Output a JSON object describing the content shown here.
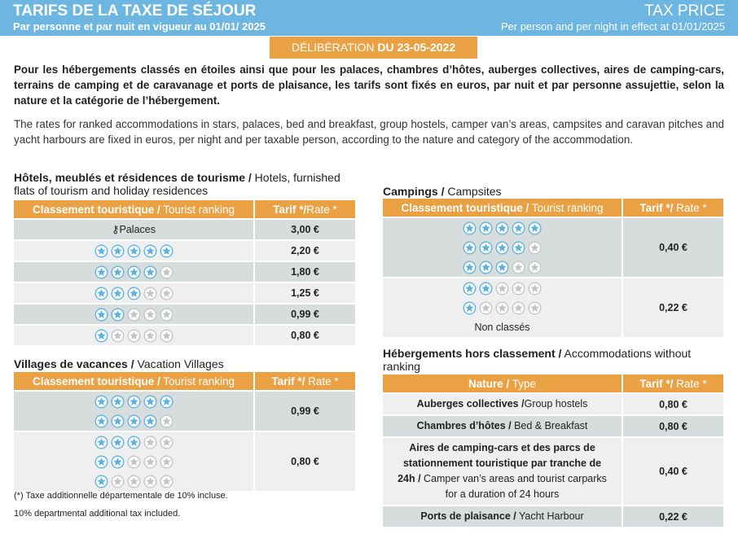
{
  "banner": {
    "title_fr": "TARIFS DE LA TAXE DE SÉJOUR",
    "subtitle_fr": "Par personne et par nuit en vigueur au 01/01/ 2025",
    "title_en": "TAX PRICE",
    "subtitle_en": "Per person and per night in effect at 01/01/2025"
  },
  "deliberation": {
    "label": "DÉLIBÉRATION",
    "date": "DU 23-05-2022"
  },
  "intro_fr": "Pour les hébergements classés en étoiles ainsi que pour les palaces, chambres d’hôtes, auberges collectives, aires de camping-cars, terrains de camping et de caravanage et ports de plaisance, les tarifs sont fixés en euros, par nuit et par personne assujettie, selon la nature et la catégorie de l’hébergement.",
  "intro_en": "The rates for ranked accommodations in stars, palaces, bed and breakfast, group hostels, camper van’s areas, campsites and caravan pitches and yacht harbours are fixed in euros, per night and per taxable person, according to the nature and category of the accommodation.",
  "colors": {
    "banner": "#6db6e1",
    "accent": "#e9a144",
    "row_dark": "#d7dcdc",
    "row_light": "#efefef",
    "star_on": "#5cb3e3",
    "star_off": "#c4c4c4"
  },
  "hotels": {
    "title_fr": "Hôtels, meublés et résidences de tourisme /",
    "title_en": " Hotels, furnished flats of tourism and holiday residences",
    "col1_fr": "Classement touristique /",
    "col1_en": " Tourist ranking",
    "col2_fr": "Tarif */",
    "col2_en": "Rate *",
    "rows": [
      {
        "label": "Palaces",
        "icon": "palace-keys-icon",
        "rate": "3,00 €"
      },
      {
        "stars": 5,
        "rate": "2,20 €"
      },
      {
        "stars": 4,
        "rate": "1,80 €"
      },
      {
        "stars": 3,
        "rate": "1,25 €"
      },
      {
        "stars": 2,
        "rate": "0,99 €"
      },
      {
        "stars": 1,
        "rate": "0,80 €"
      }
    ]
  },
  "villages": {
    "title_fr": "Villages de vacances /",
    "title_en": " Vacation Villages",
    "col1_fr": "Classement touristique /",
    "col1_en": " Tourist ranking",
    "col2_fr": "Tarif */",
    "col2_en": " Rate *",
    "groups": [
      {
        "stars": [
          5,
          4
        ],
        "rate": "0,99 €"
      },
      {
        "stars": [
          3,
          2,
          1
        ],
        "rate": "0,80 €"
      }
    ]
  },
  "campings": {
    "title_fr": "Campings /",
    "title_en": " Campsites",
    "col1_fr": "Classement touristique /",
    "col1_en": " Tourist ranking",
    "col2_fr": "Tarif */",
    "col2_en": " Rate *",
    "groups": [
      {
        "stars": [
          5,
          4,
          3
        ],
        "rate": "0,40 €"
      },
      {
        "stars": [
          2,
          1
        ],
        "extra": "Non classés",
        "rate": "0,22 €"
      }
    ]
  },
  "unranked": {
    "title_fr": "Hébergements hors classement /",
    "title_en": " Accommodations without ranking",
    "col1_fr": "Nature /",
    "col1_en": " Type",
    "col2_fr": "Tarif */",
    "col2_en": " Rate *",
    "rows": [
      {
        "fr": "Auberges collectives /",
        "en": "Group hostels",
        "rate": "0,80 €"
      },
      {
        "fr": "Chambres d’hôtes /",
        "en": " Bed & Breakfast",
        "rate": "0,80 €"
      },
      {
        "fr": "Aires de camping-cars et des parcs de stationnement touristique par tranche de 24h /",
        "en": " Camper van’s areas and tourist carparks for a duration of 24 hours",
        "rate": "0,40 €"
      },
      {
        "fr": "Ports de plaisance /",
        "en": " Yacht Harbour",
        "rate": "0,22 €"
      }
    ]
  },
  "footnotes": {
    "fr": "(*) Taxe additionnelle départementale de 10% incluse.",
    "en": "10% departmental additional tax included."
  }
}
